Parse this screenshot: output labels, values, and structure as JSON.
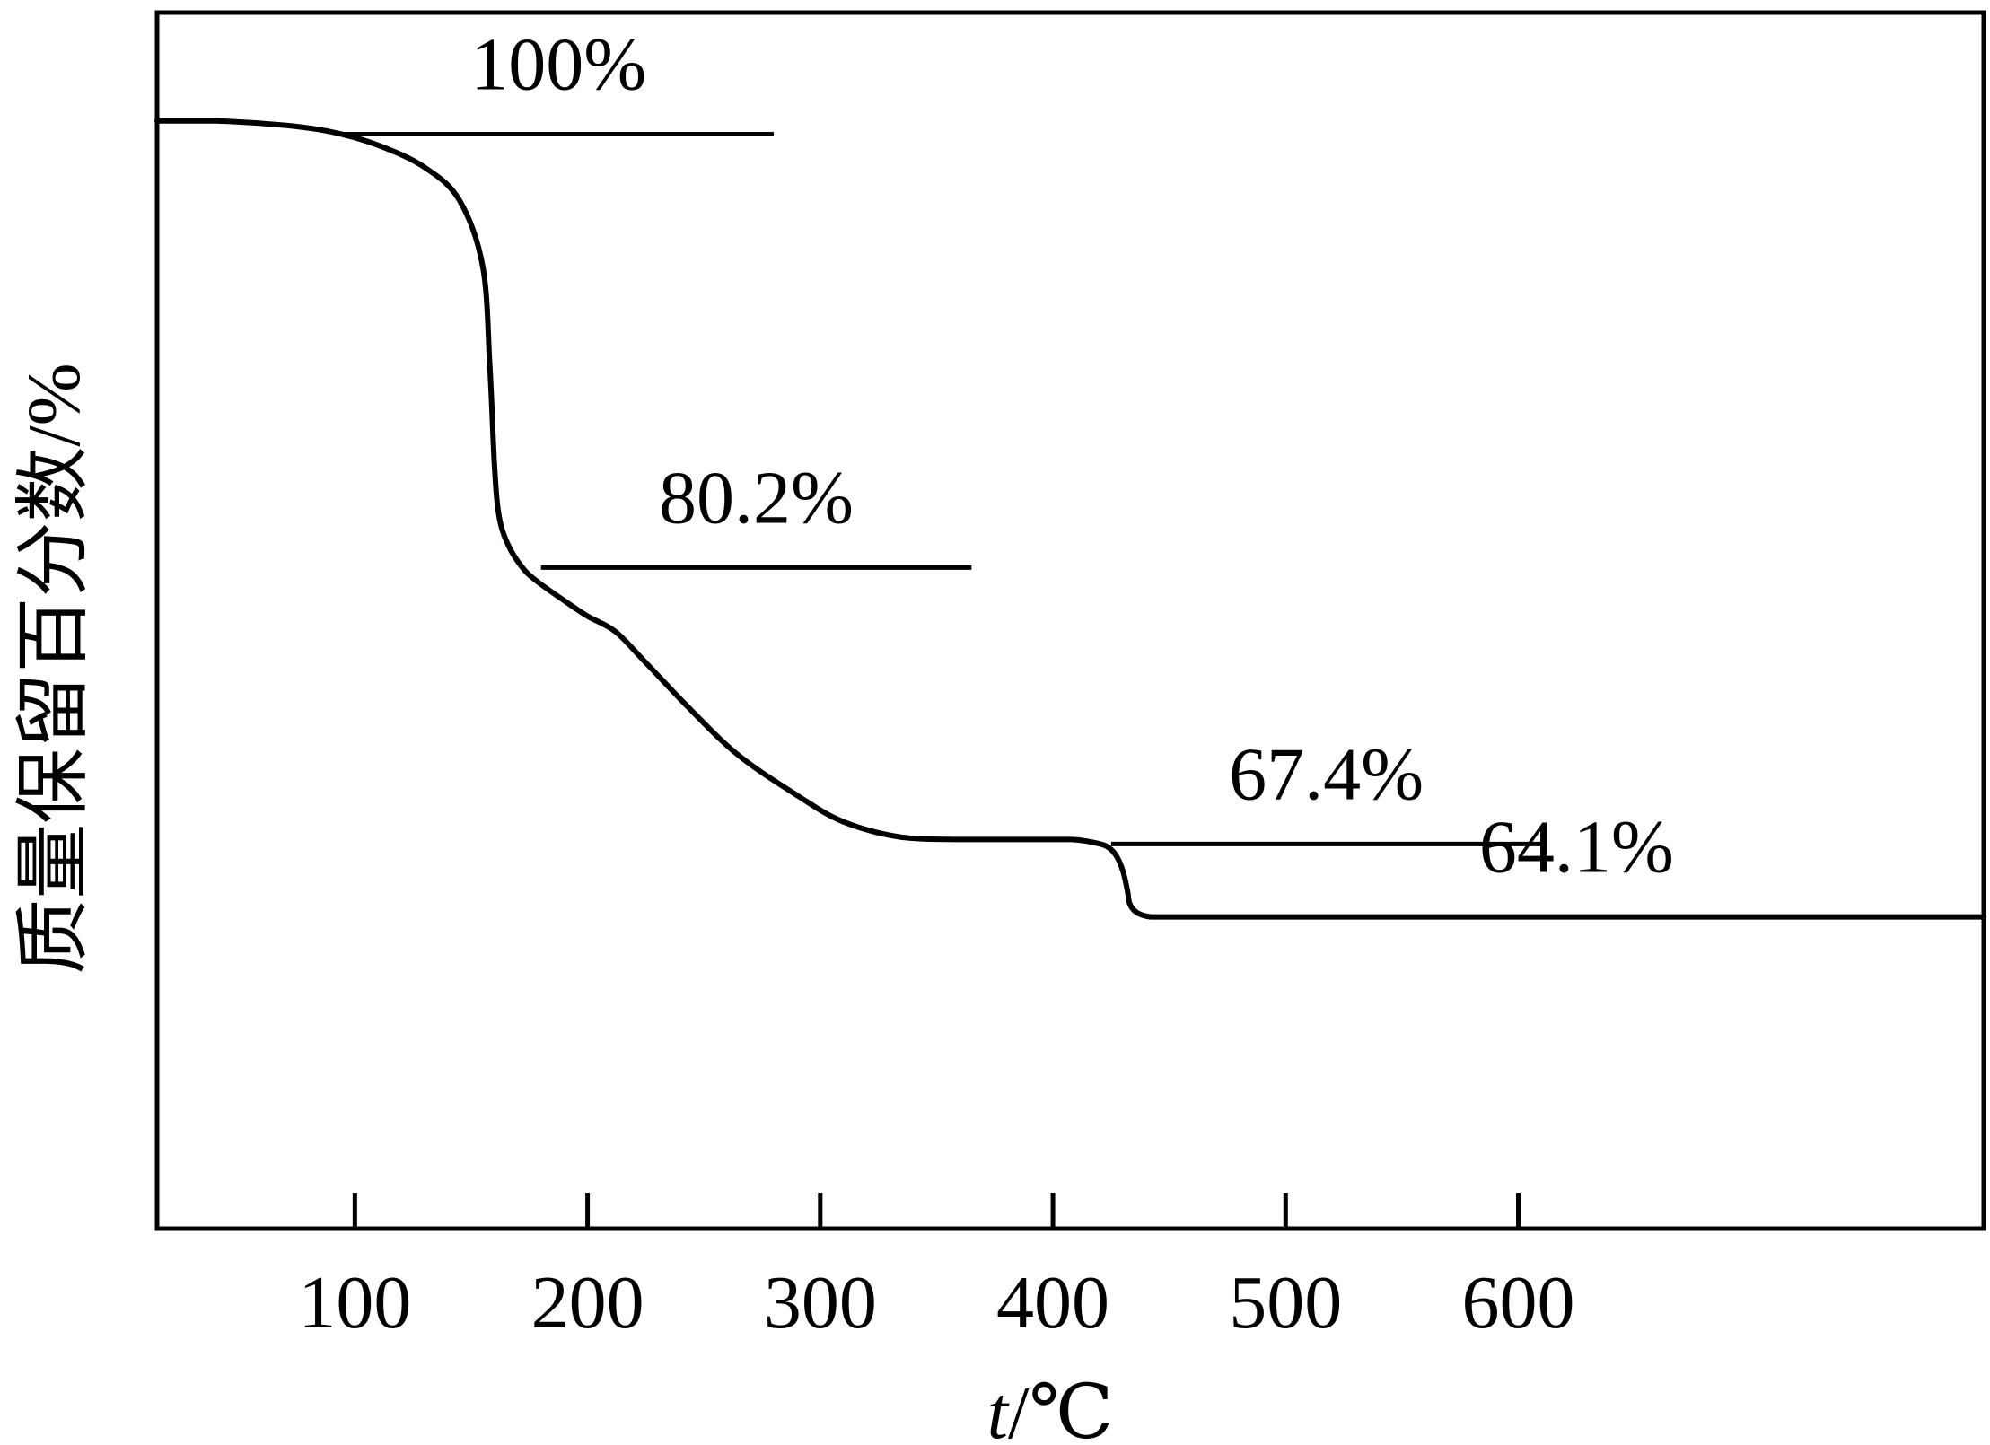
{
  "chart_data": {
    "type": "line",
    "title": "",
    "xlabel": "t/℃",
    "xlabel_parts": {
      "var": "t",
      "unit": "/℃"
    },
    "ylabel": "质量保留百分数/%",
    "xlim": [
      15,
      800
    ],
    "ylim": [
      50,
      105
    ],
    "x_ticks": [
      100,
      200,
      300,
      400,
      500,
      600
    ],
    "grid": false,
    "legend": "none",
    "line_color": "#000000",
    "series": [
      {
        "x": [
          15,
          40,
          70,
          90,
          110,
          130,
          145,
          155,
          158,
          160,
          162,
          166,
          172,
          178,
          190,
          200,
          212,
          225,
          245,
          265,
          290,
          310,
          335,
          360,
          400,
          408,
          416,
          423,
          427,
          430,
          432,
          433,
          436,
          442,
          450,
          470,
          500,
          600,
          700,
          800
        ],
        "y": [
          100.1,
          100.1,
          99.9,
          99.6,
          99.0,
          98.0,
          96.5,
          93.5,
          89.0,
          84.5,
          82.2,
          80.9,
          79.9,
          79.3,
          78.4,
          77.7,
          77.0,
          75.6,
          73.4,
          71.4,
          69.6,
          68.4,
          67.7,
          67.6,
          67.6,
          67.6,
          67.5,
          67.3,
          66.9,
          66.2,
          65.3,
          64.7,
          64.3,
          64.1,
          64.1,
          64.1,
          64.1,
          64.1,
          64.1,
          64.1
        ]
      }
    ],
    "annotations": [
      {
        "text": "100%",
        "y": 99.5,
        "x_from": 95,
        "x_to": 280
      },
      {
        "text": "80.2%",
        "y": 79.9,
        "x_from": 180,
        "x_to": 365
      },
      {
        "text": "67.4%",
        "y": 67.4,
        "x_from": 425,
        "x_to": 610
      },
      {
        "text": "64.1%",
        "y": 64.1,
        "x_from": 450,
        "x_to": 800
      }
    ]
  }
}
